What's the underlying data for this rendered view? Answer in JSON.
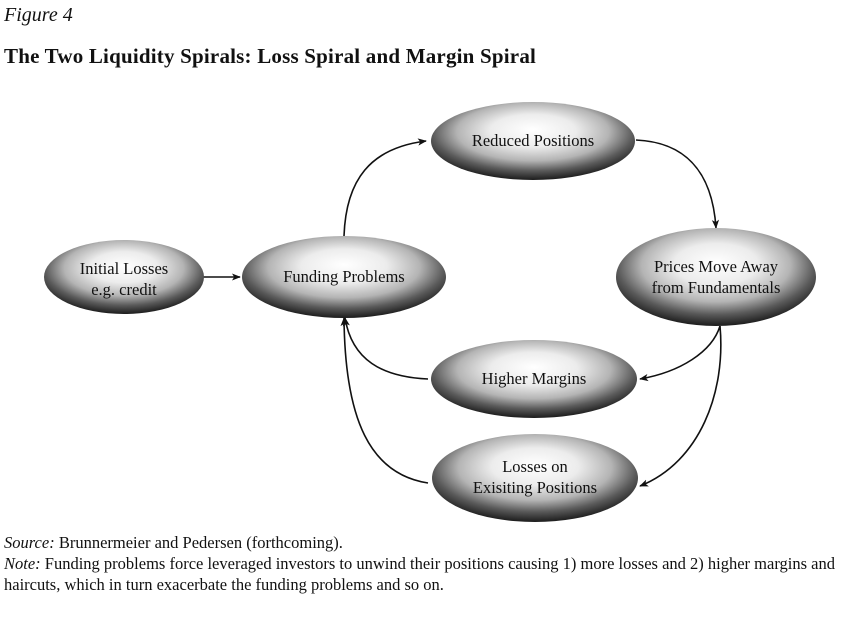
{
  "figure": {
    "label": "Figure 4",
    "title": "The Two Liquidity Spirals: Loss Spiral and Margin Spiral"
  },
  "nodes": {
    "initial_losses": [
      "Initial Losses",
      "e.g. credit"
    ],
    "funding_problems": [
      "Funding Problems"
    ],
    "reduced_positions": [
      "Reduced Positions"
    ],
    "prices_move_away": [
      "Prices Move Away",
      "from Fundamentals"
    ],
    "higher_margins": [
      "Higher Margins"
    ],
    "losses_on_existing": [
      "Losses on",
      "Exisiting Positions"
    ]
  },
  "caption": {
    "source_lead": "Source:",
    "source_text": " Brunnermeier and Pedersen (forthcoming).",
    "note_lead": "Note:",
    "note_text": " Funding problems force leveraged investors to unwind their positions causing 1) more losses and 2) higher margins and haircuts, which in turn exacerbate the funding problems and so on."
  }
}
